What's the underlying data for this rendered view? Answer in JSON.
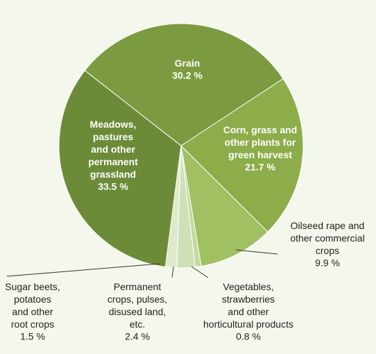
{
  "chart_data": {
    "type": "pie",
    "categories": [
      "Grain",
      "Corn, grass and\nother plants for\ngreen harvest",
      "Oilseed rape and\nother commercial\ncrops",
      "Vegetables,\nstrawberries\nand other\nhorticultural products",
      "Permanent\ncrops, pulses,\ndisused land,\netc.",
      "Sugar beets,\npotatoes\nand other\nroot crops",
      "Meadows,\npastures\nand other\npermanent\ngrassland"
    ],
    "values": [
      30.2,
      21.7,
      9.9,
      0.8,
      2.4,
      1.5,
      33.5
    ],
    "value_labels": [
      "30.2 %",
      "21.7 %",
      "9.9 %",
      "0.8 %",
      "2.4 %",
      "1.5 %",
      "33.5 %"
    ],
    "colors": [
      "#7c9b40",
      "#8cad4a",
      "#a0c062",
      "#c5d9a2",
      "#cfe0b6",
      "#dfeacb",
      "#6c8b38"
    ]
  }
}
